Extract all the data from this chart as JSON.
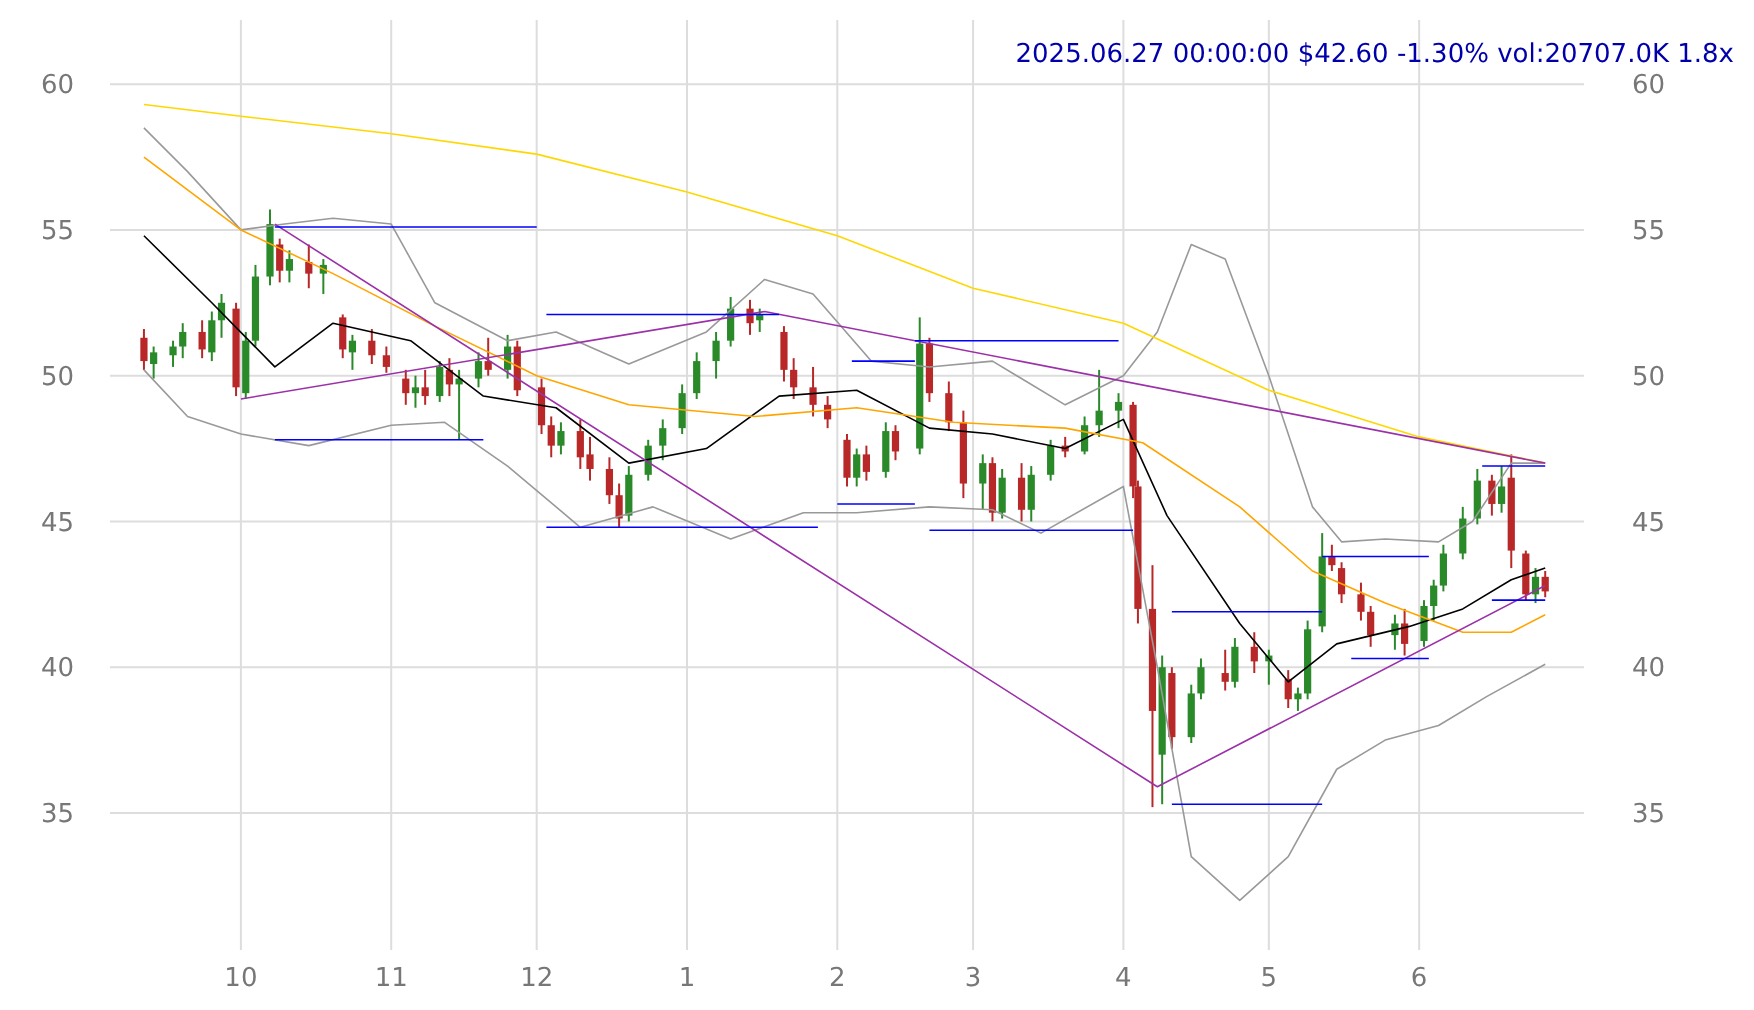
{
  "chart_data": {
    "type": "candlestick",
    "title": "2025.06.27 00:00:00 $42.60 -1.30% vol:20707.0K 1.8x",
    "xlim": [
      "2024-09-04",
      "2025-07-05"
    ],
    "xticks": [
      {
        "value": "2024-10-01",
        "label": "10"
      },
      {
        "value": "2024-11-01",
        "label": "11"
      },
      {
        "value": "2024-12-01",
        "label": "12"
      },
      {
        "value": "2025-01-01",
        "label": "1"
      },
      {
        "value": "2025-02-01",
        "label": "2"
      },
      {
        "value": "2025-03-01",
        "label": "3"
      },
      {
        "value": "2025-04-01",
        "label": "4"
      },
      {
        "value": "2025-05-01",
        "label": "5"
      },
      {
        "value": "2025-06-01",
        "label": "6"
      }
    ],
    "ylim": [
      30.3,
      62.2
    ],
    "yticks": [
      35,
      40,
      45,
      50,
      55,
      60
    ],
    "y2lim": [
      30.3,
      62.2
    ],
    "y2ticks": [
      35,
      40,
      45,
      50,
      55,
      60
    ],
    "grid": true,
    "line_style": "solid",
    "series": [
      {
        "color": "#2a8a2a",
        "x": [
          "2024-09-13",
          "2024-09-17",
          "2024-09-19",
          "2024-09-25",
          "2024-09-27",
          "2024-10-02",
          "2024-10-04",
          "2024-10-07",
          "2024-10-11",
          "2024-10-18",
          "2024-10-24",
          "2024-11-06",
          "2024-11-11",
          "2024-11-15",
          "2024-11-19",
          "2024-11-25",
          "2024-12-06",
          "2024-12-20",
          "2024-12-24",
          "2024-12-27",
          "2024-12-31",
          "2025-01-03",
          "2025-01-07",
          "2025-01-10",
          "2025-01-16",
          "2025-02-05",
          "2025-02-11",
          "2025-02-18",
          "2025-03-03",
          "2025-03-07",
          "2025-03-13",
          "2025-03-17",
          "2025-03-24",
          "2025-03-27",
          "2025-03-31",
          "2025-04-09",
          "2025-04-15",
          "2025-04-17",
          "2025-04-24",
          "2025-05-01",
          "2025-05-07",
          "2025-05-09",
          "2025-05-12",
          "2025-05-27",
          "2025-06-02",
          "2025-06-04",
          "2025-06-06",
          "2025-06-10",
          "2025-06-13",
          "2025-06-18",
          "2025-06-25"
        ],
        "ohlc": [
          [
            50.4,
            51.0,
            49.9,
            50.8
          ],
          [
            50.7,
            51.2,
            50.3,
            51.0
          ],
          [
            51.0,
            51.8,
            50.6,
            51.5
          ],
          [
            50.8,
            52.2,
            50.5,
            51.9
          ],
          [
            51.9,
            52.8,
            51.3,
            52.5
          ],
          [
            49.4,
            51.5,
            49.2,
            51.2
          ],
          [
            51.2,
            53.8,
            51.0,
            53.4
          ],
          [
            53.4,
            55.7,
            53.1,
            55.2
          ],
          [
            53.6,
            54.3,
            53.2,
            54.0
          ],
          [
            53.5,
            54.0,
            52.8,
            53.8
          ],
          [
            50.8,
            51.4,
            50.2,
            51.2
          ],
          [
            49.4,
            50.0,
            48.9,
            49.6
          ],
          [
            49.3,
            50.5,
            49.1,
            50.3
          ],
          [
            49.7,
            50.2,
            47.8,
            49.9
          ],
          [
            49.9,
            50.8,
            49.6,
            50.5
          ],
          [
            50.2,
            51.4,
            49.9,
            51.0
          ],
          [
            47.6,
            48.4,
            47.3,
            48.1
          ],
          [
            45.2,
            46.9,
            45.0,
            46.6
          ],
          [
            46.6,
            47.8,
            46.4,
            47.6
          ],
          [
            47.6,
            48.5,
            47.1,
            48.2
          ],
          [
            48.2,
            49.7,
            48.0,
            49.4
          ],
          [
            49.4,
            50.8,
            49.2,
            50.5
          ],
          [
            50.5,
            51.5,
            49.9,
            51.2
          ],
          [
            51.2,
            52.7,
            51.0,
            52.3
          ],
          [
            51.9,
            52.3,
            51.5,
            52.1
          ],
          [
            46.5,
            47.5,
            46.2,
            47.3
          ],
          [
            46.7,
            48.4,
            46.5,
            48.1
          ],
          [
            47.5,
            52.0,
            47.3,
            51.1
          ],
          [
            46.3,
            47.3,
            45.4,
            47.0
          ],
          [
            45.3,
            46.8,
            45.1,
            46.5
          ],
          [
            45.4,
            46.9,
            45.0,
            46.6
          ],
          [
            46.6,
            47.8,
            46.4,
            47.6
          ],
          [
            47.4,
            48.6,
            47.3,
            48.3
          ],
          [
            48.3,
            50.2,
            47.9,
            48.8
          ],
          [
            48.8,
            49.4,
            48.2,
            49.1
          ],
          [
            37.0,
            40.4,
            35.3,
            40.0
          ],
          [
            37.6,
            39.4,
            37.4,
            39.1
          ],
          [
            39.1,
            40.3,
            38.9,
            40.0
          ],
          [
            39.5,
            41.0,
            39.3,
            40.7
          ],
          [
            40.2,
            40.6,
            39.4,
            40.4
          ],
          [
            38.9,
            39.3,
            38.5,
            39.1
          ],
          [
            39.1,
            41.6,
            38.9,
            41.3
          ],
          [
            41.4,
            44.6,
            41.2,
            43.8
          ],
          [
            41.1,
            41.8,
            40.6,
            41.5
          ],
          [
            40.9,
            42.3,
            40.7,
            42.1
          ],
          [
            42.1,
            43.0,
            41.6,
            42.8
          ],
          [
            42.8,
            44.2,
            42.6,
            43.9
          ],
          [
            43.9,
            45.5,
            43.7,
            45.1
          ],
          [
            45.1,
            46.8,
            44.9,
            46.4
          ],
          [
            45.6,
            46.9,
            45.3,
            46.2
          ],
          [
            42.5,
            43.4,
            42.2,
            43.1
          ]
        ]
      },
      {
        "color": "#b82828",
        "x": [
          "2024-09-11",
          "2024-09-23",
          "2024-09-30",
          "2024-10-09",
          "2024-10-15",
          "2024-10-22",
          "2024-10-28",
          "2024-10-31",
          "2024-11-04",
          "2024-11-08",
          "2024-11-13",
          "2024-11-21",
          "2024-11-27",
          "2024-12-02",
          "2024-12-04",
          "2024-12-10",
          "2024-12-12",
          "2024-12-16",
          "2024-12-18",
          "2025-01-14",
          "2025-01-21",
          "2025-01-23",
          "2025-01-27",
          "2025-01-30",
          "2025-02-03",
          "2025-02-07",
          "2025-02-13",
          "2025-02-20",
          "2025-02-24",
          "2025-02-27",
          "2025-03-05",
          "2025-03-11",
          "2025-03-20",
          "2025-04-03",
          "2025-04-04",
          "2025-04-07",
          "2025-04-11",
          "2025-04-22",
          "2025-04-28",
          "2025-05-05",
          "2025-05-14",
          "2025-05-16",
          "2025-05-20",
          "2025-05-22",
          "2025-05-29",
          "2025-06-16",
          "2025-06-20",
          "2025-06-23",
          "2025-06-27"
        ],
        "ohlc": [
          [
            51.3,
            51.6,
            50.2,
            50.5
          ],
          [
            51.5,
            51.9,
            50.6,
            50.9
          ],
          [
            52.3,
            52.5,
            49.3,
            49.6
          ],
          [
            54.5,
            54.7,
            53.2,
            53.6
          ],
          [
            53.9,
            54.5,
            53.0,
            53.5
          ],
          [
            52.0,
            52.1,
            50.6,
            50.9
          ],
          [
            51.2,
            51.6,
            50.4,
            50.7
          ],
          [
            50.7,
            51.0,
            50.1,
            50.3
          ],
          [
            49.9,
            50.2,
            49.0,
            49.4
          ],
          [
            49.6,
            50.2,
            49.0,
            49.3
          ],
          [
            50.2,
            50.6,
            49.3,
            49.7
          ],
          [
            50.5,
            51.3,
            50.0,
            50.2
          ],
          [
            51.0,
            51.2,
            49.3,
            49.5
          ],
          [
            49.6,
            49.9,
            48.0,
            48.3
          ],
          [
            48.3,
            48.6,
            47.2,
            47.6
          ],
          [
            48.1,
            48.5,
            46.8,
            47.2
          ],
          [
            47.3,
            47.9,
            46.4,
            46.8
          ],
          [
            46.8,
            47.2,
            45.6,
            45.9
          ],
          [
            45.9,
            46.3,
            44.8,
            45.1
          ],
          [
            52.3,
            52.6,
            51.4,
            51.8
          ],
          [
            51.5,
            51.7,
            49.8,
            50.2
          ],
          [
            50.2,
            50.6,
            49.2,
            49.6
          ],
          [
            49.6,
            50.3,
            48.6,
            49.0
          ],
          [
            49.0,
            49.3,
            48.2,
            48.5
          ],
          [
            47.8,
            48.0,
            46.2,
            46.5
          ],
          [
            47.3,
            47.6,
            46.4,
            46.7
          ],
          [
            48.1,
            48.3,
            47.1,
            47.4
          ],
          [
            51.1,
            51.3,
            49.1,
            49.4
          ],
          [
            49.4,
            49.8,
            48.1,
            48.4
          ],
          [
            48.4,
            48.8,
            45.8,
            46.3
          ],
          [
            47.0,
            47.2,
            45.0,
            45.3
          ],
          [
            46.5,
            47.0,
            45.0,
            45.4
          ],
          [
            47.6,
            47.9,
            47.2,
            47.4
          ],
          [
            49.0,
            49.1,
            45.8,
            46.2
          ],
          [
            46.2,
            46.4,
            41.5,
            42.0
          ],
          [
            42.0,
            43.5,
            35.2,
            38.5
          ],
          [
            39.8,
            40.0,
            37.2,
            37.6
          ],
          [
            39.8,
            40.6,
            39.2,
            39.5
          ],
          [
            40.7,
            41.2,
            39.8,
            40.2
          ],
          [
            39.6,
            39.9,
            38.6,
            38.9
          ],
          [
            43.8,
            44.2,
            43.3,
            43.5
          ],
          [
            43.4,
            43.6,
            42.2,
            42.5
          ],
          [
            42.5,
            42.9,
            41.6,
            41.9
          ],
          [
            41.9,
            42.1,
            40.7,
            41.1
          ],
          [
            41.5,
            42.0,
            40.4,
            40.8
          ],
          [
            46.4,
            46.6,
            45.2,
            45.6
          ],
          [
            46.5,
            47.3,
            43.4,
            44.0
          ],
          [
            43.9,
            44.0,
            42.3,
            42.5
          ],
          [
            43.1,
            43.3,
            42.4,
            42.6
          ]
        ]
      },
      {
        "type": "line",
        "color": "#999999",
        "x": [
          "2024-09-11",
          "2024-09-20",
          "2024-10-01",
          "2024-10-10",
          "2024-10-20",
          "2024-11-01",
          "2024-11-10",
          "2024-11-25",
          "2024-12-05",
          "2024-12-20",
          "2025-01-05",
          "2025-01-17",
          "2025-01-27",
          "2025-02-08",
          "2025-02-20",
          "2025-03-05",
          "2025-03-20",
          "2025-04-01",
          "2025-04-08",
          "2025-04-15",
          "2025-04-22",
          "2025-05-01",
          "2025-05-10",
          "2025-05-16",
          "2025-05-25",
          "2025-06-05",
          "2025-06-12",
          "2025-06-20",
          "2025-06-27"
        ],
        "values": [
          58.5,
          57.0,
          55.0,
          55.2,
          55.4,
          55.2,
          52.5,
          51.2,
          51.5,
          50.4,
          51.5,
          53.3,
          52.8,
          50.5,
          50.3,
          50.5,
          49.0,
          50.0,
          51.5,
          54.5,
          54.0,
          50.0,
          45.5,
          44.3,
          44.4,
          44.3,
          45.0,
          47.0,
          47.0
        ]
      },
      {
        "type": "line",
        "color": "#999999",
        "x": [
          "2024-09-11",
          "2024-09-20",
          "2024-10-01",
          "2024-10-15",
          "2024-11-01",
          "2024-11-12",
          "2024-11-25",
          "2024-12-10",
          "2024-12-25",
          "2025-01-10",
          "2025-01-25",
          "2025-02-05",
          "2025-02-20",
          "2025-03-05",
          "2025-03-15",
          "2025-04-01",
          "2025-04-08",
          "2025-04-15",
          "2025-04-25",
          "2025-05-05",
          "2025-05-15",
          "2025-05-25",
          "2025-06-05",
          "2025-06-15",
          "2025-06-27"
        ],
        "values": [
          50.2,
          48.6,
          48.0,
          47.6,
          48.3,
          48.4,
          46.9,
          44.8,
          45.5,
          44.4,
          45.3,
          45.3,
          45.5,
          45.4,
          44.6,
          46.2,
          40.0,
          33.5,
          32.0,
          33.5,
          36.5,
          37.5,
          38.0,
          39.0,
          40.1
        ]
      },
      {
        "type": "line",
        "color": "#000000",
        "x": [
          "2024-09-11",
          "2024-09-25",
          "2024-10-08",
          "2024-10-20",
          "2024-11-05",
          "2024-11-20",
          "2024-12-05",
          "2024-12-20",
          "2025-01-05",
          "2025-01-20",
          "2025-02-05",
          "2025-02-20",
          "2025-03-05",
          "2025-03-20",
          "2025-04-01",
          "2025-04-10",
          "2025-04-25",
          "2025-05-05",
          "2025-05-15",
          "2025-05-30",
          "2025-06-10",
          "2025-06-20",
          "2025-06-27"
        ],
        "values": [
          54.8,
          52.5,
          50.3,
          51.8,
          51.2,
          49.3,
          48.9,
          47.0,
          47.5,
          49.3,
          49.5,
          48.2,
          48.0,
          47.5,
          48.5,
          45.2,
          41.5,
          39.5,
          40.8,
          41.4,
          42.0,
          43.0,
          43.4
        ]
      },
      {
        "type": "line",
        "color": "#ffa500",
        "x": [
          "2024-09-11",
          "2024-10-01",
          "2024-10-20",
          "2024-11-10",
          "2024-12-01",
          "2024-12-20",
          "2025-01-15",
          "2025-02-05",
          "2025-02-25",
          "2025-03-20",
          "2025-04-05",
          "2025-04-25",
          "2025-05-10",
          "2025-05-25",
          "2025-06-10",
          "2025-06-20",
          "2025-06-27"
        ],
        "values": [
          57.5,
          55.0,
          53.5,
          51.7,
          50.0,
          49.0,
          48.6,
          48.9,
          48.4,
          48.2,
          47.7,
          45.5,
          43.3,
          42.2,
          41.2,
          41.2,
          41.8
        ]
      },
      {
        "type": "line",
        "color": "#ffd700",
        "x": [
          "2024-09-11",
          "2024-10-01",
          "2024-11-01",
          "2024-12-01",
          "2025-01-01",
          "2025-02-01",
          "2025-03-01",
          "2025-04-01",
          "2025-05-01",
          "2025-06-01",
          "2025-06-27"
        ],
        "values": [
          59.3,
          58.9,
          58.3,
          57.6,
          56.3,
          54.8,
          53.0,
          51.8,
          49.5,
          47.9,
          47.0
        ]
      },
      {
        "type": "line",
        "color": "#9b30a8",
        "x": [
          "2024-10-08",
          "2025-04-08",
          "2025-06-27"
        ],
        "values": [
          55.2,
          35.9,
          42.8
        ]
      },
      {
        "type": "line",
        "color": "#9b30a8",
        "x": [
          "2024-10-01",
          "2025-01-17",
          "2025-06-27"
        ],
        "values": [
          49.2,
          52.2,
          47.0
        ]
      },
      {
        "type": "line",
        "color": "#0000ff",
        "x": [
          "2024-10-08",
          "2024-12-01"
        ],
        "values": [
          55.1,
          55.1
        ]
      },
      {
        "type": "line",
        "color": "#0000ff",
        "x": [
          "2024-10-08",
          "2024-11-20"
        ],
        "values": [
          47.8,
          47.8
        ]
      },
      {
        "type": "line",
        "color": "#0000ff",
        "x": [
          "2024-12-03",
          "2025-01-20"
        ],
        "values": [
          52.1,
          52.1
        ]
      },
      {
        "type": "line",
        "color": "#0000ff",
        "x": [
          "2024-12-03",
          "2025-01-28"
        ],
        "values": [
          44.8,
          44.8
        ]
      },
      {
        "type": "line",
        "color": "#0000ff",
        "x": [
          "2025-02-04",
          "2025-02-17"
        ],
        "values": [
          50.5,
          50.5
        ]
      },
      {
        "type": "line",
        "color": "#0000ff",
        "x": [
          "2025-02-17",
          "2025-03-31"
        ],
        "values": [
          51.2,
          51.2
        ]
      },
      {
        "type": "line",
        "color": "#0000ff",
        "x": [
          "2025-02-01",
          "2025-02-17"
        ],
        "values": [
          45.6,
          45.6
        ]
      },
      {
        "type": "line",
        "color": "#0000ff",
        "x": [
          "2025-02-20",
          "2025-04-03"
        ],
        "values": [
          44.7,
          44.7
        ]
      },
      {
        "type": "line",
        "color": "#0000ff",
        "x": [
          "2025-04-11",
          "2025-05-12"
        ],
        "values": [
          41.9,
          41.9
        ]
      },
      {
        "type": "line",
        "color": "#0000ff",
        "x": [
          "2025-04-11",
          "2025-05-12"
        ],
        "values": [
          35.3,
          35.3
        ]
      },
      {
        "type": "line",
        "color": "#0000ff",
        "x": [
          "2025-05-12",
          "2025-06-03"
        ],
        "values": [
          43.8,
          43.8
        ]
      },
      {
        "type": "line",
        "color": "#0000ff",
        "x": [
          "2025-05-18",
          "2025-06-03"
        ],
        "values": [
          40.3,
          40.3
        ]
      },
      {
        "type": "line",
        "color": "#0000ff",
        "x": [
          "2025-06-14",
          "2025-06-27"
        ],
        "values": [
          46.9,
          46.9
        ]
      },
      {
        "type": "line",
        "color": "#0000ff",
        "x": [
          "2025-06-16",
          "2025-06-27"
        ],
        "values": [
          42.3,
          42.3
        ]
      }
    ]
  }
}
